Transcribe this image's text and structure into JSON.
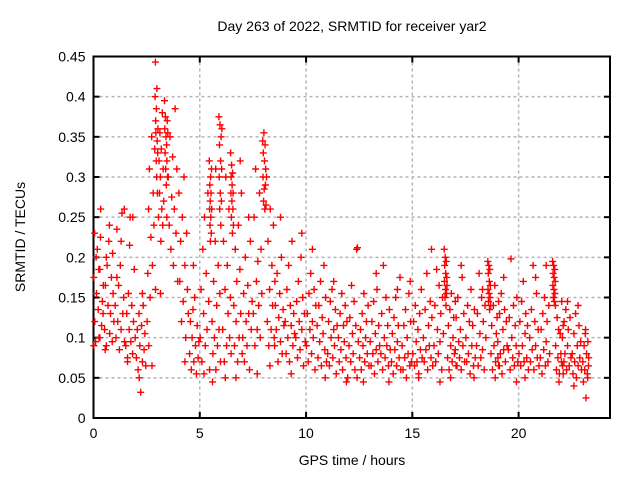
{
  "chart_data": {
    "type": "scatter",
    "title": "Day 263 of 2022, SRMTID for receiver yar2",
    "xlabel": "GPS time / hours",
    "ylabel": "SRMTID / TECUs",
    "xlim": [
      0,
      24.3
    ],
    "ylim": [
      0,
      0.45
    ],
    "xticks": [
      0,
      5,
      10,
      15,
      20
    ],
    "xtick_labels": [
      "0",
      "5",
      "10",
      "15",
      "20"
    ],
    "yticks": [
      0,
      0.05,
      0.1,
      0.15,
      0.2,
      0.25,
      0.3,
      0.35,
      0.4,
      0.45
    ],
    "ytick_labels": [
      "0",
      "0.05",
      "0.1",
      "0.15",
      "0.2",
      "0.25",
      "0.3",
      "0.35",
      "0.4",
      "0.45"
    ],
    "grid": true,
    "legend": "none",
    "marker": {
      "shape": "plus",
      "size": 7
    },
    "colors": {
      "marker": "#ff0000",
      "grid": "#b4b4b4",
      "border": "#000000",
      "background": "#ffffff",
      "text": "#000000"
    },
    "series_bins": [
      {
        "x0": 0.02,
        "dx": 0.04,
        "ys": [
          0.175,
          0.12,
          0.095,
          0.155,
          0.21,
          0.135,
          0.1,
          0.185,
          0.26,
          0.115,
          0.145,
          0.165
        ]
      },
      {
        "x0": 0.52,
        "dx": 0.04,
        "ys": [
          0.11,
          0.165,
          0.09,
          0.19,
          0.14,
          0.22,
          0.105,
          0.13,
          0.175,
          0.095,
          0.155,
          0.12
        ]
      },
      {
        "x0": 1.02,
        "dx": 0.04,
        "ys": [
          0.14,
          0.1,
          0.235,
          0.12,
          0.165,
          0.085,
          0.19,
          0.11,
          0.255,
          0.13,
          0.15,
          0.095
        ]
      },
      {
        "x0": 1.52,
        "dx": 0.04,
        "ys": [
          0.09,
          0.13,
          0.075,
          0.155,
          0.11,
          0.25,
          0.095,
          0.14,
          0.08,
          0.12,
          0.185,
          0.1
        ]
      },
      {
        "x0": 2.02,
        "dx": 0.04,
        "ys": [
          0.075,
          0.11,
          0.06,
          0.13,
          0.09,
          0.032,
          0.115,
          0.07,
          0.14,
          0.085,
          0.105,
          0.065
        ]
      },
      {
        "x0": 2.52,
        "dx": 0.036,
        "ys": [
          0.12,
          0.18,
          0.26,
          0.31,
          0.15,
          0.225,
          0.35,
          0.19,
          0.28,
          0.24,
          0.335,
          0.16
        ]
      },
      {
        "x0": 2.9,
        "dx": 0.012,
        "ys": [
          0.4,
          0.443,
          0.37,
          0.355,
          0.32,
          0.385,
          0.3,
          0.41,
          0.345,
          0.28,
          0.33,
          0.36
        ]
      },
      {
        "x0": 3.06,
        "dx": 0.022,
        "ys": [
          0.25,
          0.32,
          0.28,
          0.355,
          0.3,
          0.22,
          0.335,
          0.26,
          0.38,
          0.24,
          0.31,
          0.27
        ]
      },
      {
        "x0": 3.34,
        "dx": 0.014,
        "ys": [
          0.395,
          0.36,
          0.33,
          0.375,
          0.31,
          0.35,
          0.29,
          0.34,
          0.32,
          0.37,
          0.3,
          0.355
        ]
      },
      {
        "x0": 3.52,
        "dx": 0.04,
        "ys": [
          0.3,
          0.24,
          0.35,
          0.21,
          0.275,
          0.325,
          0.19,
          0.26,
          0.385,
          0.23,
          0.31,
          0.17
        ]
      },
      {
        "x0": 4.02,
        "dx": 0.04,
        "ys": [
          0.28,
          0.17,
          0.22,
          0.12,
          0.25,
          0.145,
          0.3,
          0.19,
          0.1,
          0.23,
          0.16,
          0.13
        ]
      },
      {
        "x0": 4.52,
        "dx": 0.04,
        "ys": [
          0.08,
          0.12,
          0.06,
          0.1,
          0.135,
          0.07,
          0.15,
          0.09,
          0.055,
          0.115,
          0.075,
          0.095
        ]
      },
      {
        "x0": 5.02,
        "dx": 0.04,
        "ys": [
          0.1,
          0.16,
          0.07,
          0.21,
          0.13,
          0.25,
          0.09,
          0.18,
          0.11,
          0.28,
          0.145,
          0.06
        ]
      },
      {
        "x0": 5.45,
        "dx": 0.01,
        "ys": [
          0.32,
          0.26,
          0.29,
          0.24,
          0.27,
          0.22,
          0.3,
          0.25,
          0.28,
          0.23,
          0.31,
          0.26
        ]
      },
      {
        "x0": 5.58,
        "dx": 0.036,
        "ys": [
          0.12,
          0.08,
          0.17,
          0.1,
          0.22,
          0.06,
          0.14,
          0.09,
          0.19,
          0.11,
          0.155,
          0.07
        ]
      },
      {
        "x0": 5.9,
        "dx": 0.013,
        "ys": [
          0.375,
          0.3,
          0.34,
          0.26,
          0.365,
          0.28,
          0.32,
          0.24,
          0.35,
          0.27,
          0.31,
          0.36
        ]
      },
      {
        "x0": 6.08,
        "dx": 0.036,
        "ys": [
          0.11,
          0.22,
          0.07,
          0.16,
          0.3,
          0.09,
          0.19,
          0.13,
          0.26,
          0.1,
          0.15,
          0.08
        ]
      },
      {
        "x0": 6.45,
        "dx": 0.012,
        "ys": [
          0.33,
          0.28,
          0.3,
          0.25,
          0.315,
          0.27,
          0.29,
          0.23,
          0.305,
          0.26,
          0.28,
          0.24
        ]
      },
      {
        "x0": 6.6,
        "dx": 0.036,
        "ys": [
          0.14,
          0.09,
          0.21,
          0.12,
          0.17,
          0.07,
          0.24,
          0.1,
          0.185,
          0.13,
          0.28,
          0.08
        ]
      },
      {
        "x0": 7.02,
        "dx": 0.04,
        "ys": [
          0.1,
          0.155,
          0.07,
          0.2,
          0.12,
          0.09,
          0.165,
          0.13,
          0.06,
          0.22,
          0.11,
          0.145
        ]
      },
      {
        "x0": 7.52,
        "dx": 0.036,
        "ys": [
          0.13,
          0.25,
          0.09,
          0.31,
          0.17,
          0.11,
          0.195,
          0.14,
          0.28,
          0.1,
          0.21,
          0.155
        ]
      },
      {
        "x0": 7.96,
        "dx": 0.014,
        "ys": [
          0.345,
          0.3,
          0.33,
          0.27,
          0.355,
          0.285,
          0.32,
          0.26,
          0.34,
          0.29,
          0.31,
          0.265
        ]
      },
      {
        "x0": 8.14,
        "dx": 0.036,
        "ys": [
          0.3,
          0.12,
          0.22,
          0.09,
          0.16,
          0.26,
          0.11,
          0.19,
          0.14,
          0.24,
          0.1,
          0.17
        ]
      },
      {
        "x0": 8.52,
        "dx": 0.04,
        "ys": [
          0.09,
          0.14,
          0.11,
          0.18,
          0.07,
          0.125,
          0.155,
          0.095,
          0.2,
          0.08,
          0.135,
          0.115
        ]
      },
      {
        "x0": 9.02,
        "dx": 0.04,
        "ys": [
          0.12,
          0.08,
          0.16,
          0.1,
          0.19,
          0.07,
          0.14,
          0.115,
          0.22,
          0.09,
          0.13,
          0.105
        ]
      },
      {
        "x0": 9.52,
        "dx": 0.04,
        "ys": [
          0.1,
          0.145,
          0.075,
          0.17,
          0.12,
          0.085,
          0.2,
          0.11,
          0.15,
          0.065,
          0.13,
          0.095
        ]
      },
      {
        "x0": 10.02,
        "dx": 0.04,
        "ys": [
          0.09,
          0.13,
          0.07,
          0.155,
          0.11,
          0.18,
          0.08,
          0.12,
          0.1,
          0.16,
          0.06,
          0.14
        ]
      },
      {
        "x0": 10.52,
        "dx": 0.04,
        "ys": [
          0.115,
          0.075,
          0.14,
          0.095,
          0.17,
          0.065,
          0.125,
          0.105,
          0.19,
          0.085,
          0.15,
          0.07
        ]
      },
      {
        "x0": 11.02,
        "dx": 0.04,
        "ys": [
          0.08,
          0.12,
          0.065,
          0.145,
          0.1,
          0.16,
          0.075,
          0.11,
          0.09,
          0.135,
          0.055,
          0.115
        ]
      },
      {
        "x0": 11.52,
        "dx": 0.04,
        "ys": [
          0.1,
          0.07,
          0.13,
          0.085,
          0.155,
          0.06,
          0.115,
          0.095,
          0.14,
          0.075,
          0.12,
          0.05
        ]
      },
      {
        "x0": 12.02,
        "dx": 0.04,
        "ys": [
          0.09,
          0.125,
          0.07,
          0.165,
          0.105,
          0.08,
          0.145,
          0.06,
          0.115,
          0.21,
          0.212,
          0.095
        ]
      },
      {
        "x0": 12.52,
        "dx": 0.04,
        "ys": [
          0.075,
          0.11,
          0.06,
          0.13,
          0.09,
          0.155,
          0.07,
          0.1,
          0.12,
          0.08,
          0.14,
          0.065
        ]
      },
      {
        "x0": 13.02,
        "dx": 0.04,
        "ys": [
          0.095,
          0.065,
          0.12,
          0.08,
          0.145,
          0.055,
          0.105,
          0.085,
          0.16,
          0.07,
          0.115,
          0.09
        ]
      },
      {
        "x0": 13.52,
        "dx": 0.04,
        "ys": [
          0.08,
          0.13,
          0.06,
          0.19,
          0.1,
          0.075,
          0.15,
          0.09,
          0.115,
          0.065,
          0.135,
          0.085
        ]
      },
      {
        "x0": 14.02,
        "dx": 0.04,
        "ys": [
          0.07,
          0.105,
          0.055,
          0.125,
          0.085,
          0.15,
          0.065,
          0.095,
          0.115,
          0.075,
          0.175,
          0.06
        ]
      },
      {
        "x0": 14.52,
        "dx": 0.04,
        "ys": [
          0.09,
          0.06,
          0.115,
          0.075,
          0.135,
          0.05,
          0.1,
          0.08,
          0.155,
          0.065,
          0.12,
          0.07
        ]
      },
      {
        "x0": 15.02,
        "dx": 0.04,
        "ys": [
          0.08,
          0.12,
          0.065,
          0.14,
          0.095,
          0.07,
          0.11,
          0.055,
          0.13,
          0.085,
          0.16,
          0.075
        ]
      },
      {
        "x0": 15.52,
        "dx": 0.04,
        "ys": [
          0.1,
          0.07,
          0.135,
          0.085,
          0.18,
          0.06,
          0.115,
          0.09,
          0.145,
          0.075,
          0.125,
          0.065
        ]
      },
      {
        "x0": 16.02,
        "dx": 0.04,
        "ys": [
          0.09,
          0.14,
          0.07,
          0.185,
          0.11,
          0.08,
          0.165,
          0.095,
          0.13,
          0.06,
          0.15,
          0.105
        ]
      },
      {
        "x0": 16.5,
        "dx": 0.012,
        "ys": [
          0.21,
          0.17,
          0.19,
          0.15,
          0.2,
          0.16,
          0.18,
          0.14,
          0.195,
          0.155,
          0.175,
          0.165
        ]
      },
      {
        "x0": 16.66,
        "dx": 0.036,
        "ys": [
          0.075,
          0.115,
          0.06,
          0.135,
          0.09,
          0.155,
          0.07,
          0.1,
          0.125,
          0.08,
          0.145,
          0.065
        ]
      },
      {
        "x0": 17.02,
        "dx": 0.04,
        "ys": [
          0.085,
          0.125,
          0.065,
          0.15,
          0.095,
          0.075,
          0.11,
          0.06,
          0.175,
          0.09,
          0.13,
          0.07
        ]
      },
      {
        "x0": 17.52,
        "dx": 0.04,
        "ys": [
          0.1,
          0.07,
          0.14,
          0.08,
          0.12,
          0.055,
          0.16,
          0.09,
          0.115,
          0.065,
          0.135,
          0.075
        ]
      },
      {
        "x0": 18.02,
        "dx": 0.04,
        "ys": [
          0.09,
          0.13,
          0.065,
          0.18,
          0.105,
          0.075,
          0.15,
          0.085,
          0.12,
          0.06,
          0.14,
          0.1
        ]
      },
      {
        "x0": 18.55,
        "dx": 0.012,
        "ys": [
          0.195,
          0.16,
          0.18,
          0.145,
          0.19,
          0.155,
          0.17,
          0.135,
          0.185,
          0.15,
          0.165,
          0.14
        ]
      },
      {
        "x0": 18.7,
        "dx": 0.036,
        "ys": [
          0.08,
          0.115,
          0.06,
          0.14,
          0.09,
          0.165,
          0.07,
          0.105,
          0.125,
          0.075,
          0.145,
          0.065
        ]
      },
      {
        "x0": 19.02,
        "dx": 0.04,
        "ys": [
          0.095,
          0.065,
          0.13,
          0.08,
          0.155,
          0.055,
          0.11,
          0.085,
          0.135,
          0.07,
          0.12,
          0.09
        ]
      },
      {
        "x0": 19.52,
        "dx": 0.04,
        "ys": [
          0.085,
          0.125,
          0.06,
          0.198,
          0.1,
          0.075,
          0.14,
          0.065,
          0.115,
          0.09,
          0.15,
          0.07
        ]
      },
      {
        "x0": 20.02,
        "dx": 0.04,
        "ys": [
          0.08,
          0.12,
          0.065,
          0.145,
          0.09,
          0.17,
          0.07,
          0.105,
          0.13,
          0.075,
          0.115,
          0.06
        ]
      },
      {
        "x0": 20.52,
        "dx": 0.04,
        "ys": [
          0.1,
          0.07,
          0.135,
          0.085,
          0.19,
          0.06,
          0.12,
          0.09,
          0.155,
          0.075,
          0.11,
          0.065
        ]
      },
      {
        "x0": 21.02,
        "dx": 0.04,
        "ys": [
          0.075,
          0.11,
          0.055,
          0.13,
          0.085,
          0.15,
          0.065,
          0.095,
          0.12,
          0.07,
          0.14,
          0.08
        ]
      },
      {
        "x0": 21.6,
        "dx": 0.012,
        "ys": [
          0.195,
          0.165,
          0.18,
          0.15,
          0.19,
          0.16,
          0.175,
          0.145,
          0.185,
          0.155,
          0.17,
          0.14
        ]
      },
      {
        "x0": 21.74,
        "dx": 0.036,
        "ys": [
          0.09,
          0.06,
          0.125,
          0.075,
          0.11,
          0.055,
          0.105,
          0.08,
          0.145,
          0.065,
          0.115,
          0.07
        ]
      },
      {
        "x0": 22.02,
        "dx": 0.04,
        "ys": [
          0.07,
          0.1,
          0.055,
          0.12,
          0.08,
          0.135,
          0.06,
          0.09,
          0.11,
          0.065,
          0.125,
          0.075
        ]
      },
      {
        "x0": 22.52,
        "dx": 0.04,
        "ys": [
          0.08,
          0.055,
          0.105,
          0.07,
          0.13,
          0.05,
          0.09,
          0.065,
          0.115,
          0.075,
          0.095,
          0.06
        ]
      },
      {
        "x0": 23.02,
        "dx": 0.03,
        "ys": [
          0.07,
          0.045,
          0.09,
          0.06,
          0.105,
          0.025,
          0.08,
          0.055,
          0.095,
          0.065
        ]
      }
    ],
    "extra_points": [
      [
        0.05,
        0.23
      ],
      [
        0.12,
        0.2
      ],
      [
        0.25,
        0.185
      ],
      [
        0.33,
        0.225
      ],
      [
        0.45,
        0.13
      ],
      [
        0.6,
        0.2
      ],
      [
        0.75,
        0.24
      ],
      [
        0.9,
        0.205
      ],
      [
        1.1,
        0.175
      ],
      [
        1.3,
        0.22
      ],
      [
        1.45,
        0.26
      ],
      [
        1.7,
        0.215
      ],
      [
        1.85,
        0.25
      ],
      [
        2.3,
        0.155
      ],
      [
        2.6,
        0.09
      ],
      [
        2.75,
        0.065
      ],
      [
        3.15,
        0.155
      ],
      [
        3.45,
        0.25
      ],
      [
        4.3,
        0.07
      ],
      [
        4.7,
        0.19
      ],
      [
        5.2,
        0.055
      ],
      [
        5.75,
        0.31
      ],
      [
        6.2,
        0.05
      ],
      [
        6.9,
        0.32
      ],
      [
        7.3,
        0.25
      ],
      [
        8.3,
        0.065
      ],
      [
        8.8,
        0.25
      ],
      [
        9.3,
        0.055
      ],
      [
        9.8,
        0.23
      ],
      [
        10.3,
        0.21
      ],
      [
        10.9,
        0.05
      ],
      [
        11.3,
        0.17
      ],
      [
        11.9,
        0.045
      ],
      [
        12.4,
        0.05
      ],
      [
        13.3,
        0.18
      ],
      [
        13.9,
        0.045
      ],
      [
        14.3,
        0.16
      ],
      [
        14.9,
        0.17
      ],
      [
        15.3,
        0.05
      ],
      [
        15.9,
        0.21
      ],
      [
        16.3,
        0.045
      ],
      [
        17.3,
        0.19
      ],
      [
        17.9,
        0.05
      ],
      [
        18.3,
        0.16
      ],
      [
        19.3,
        0.175
      ],
      [
        19.9,
        0.045
      ],
      [
        20.8,
        0.175
      ],
      [
        21.3,
        0.19
      ],
      [
        22.3,
        0.145
      ],
      [
        22.8,
        0.14
      ],
      [
        23.15,
        0.11
      ],
      [
        23.3,
        0.075
      ],
      [
        23.25,
        0.05
      ],
      [
        0.02,
        0.09
      ],
      [
        0.3,
        0.1
      ],
      [
        0.55,
        0.085
      ],
      [
        1.6,
        0.07
      ],
      [
        2.15,
        0.05
      ],
      [
        5.6,
        0.045
      ],
      [
        6.7,
        0.05
      ],
      [
        7.7,
        0.055
      ],
      [
        12.7,
        0.045
      ],
      [
        16.8,
        0.05
      ],
      [
        18.9,
        0.05
      ],
      [
        20.3,
        0.05
      ],
      [
        21.9,
        0.045
      ],
      [
        22.6,
        0.04
      ]
    ]
  }
}
